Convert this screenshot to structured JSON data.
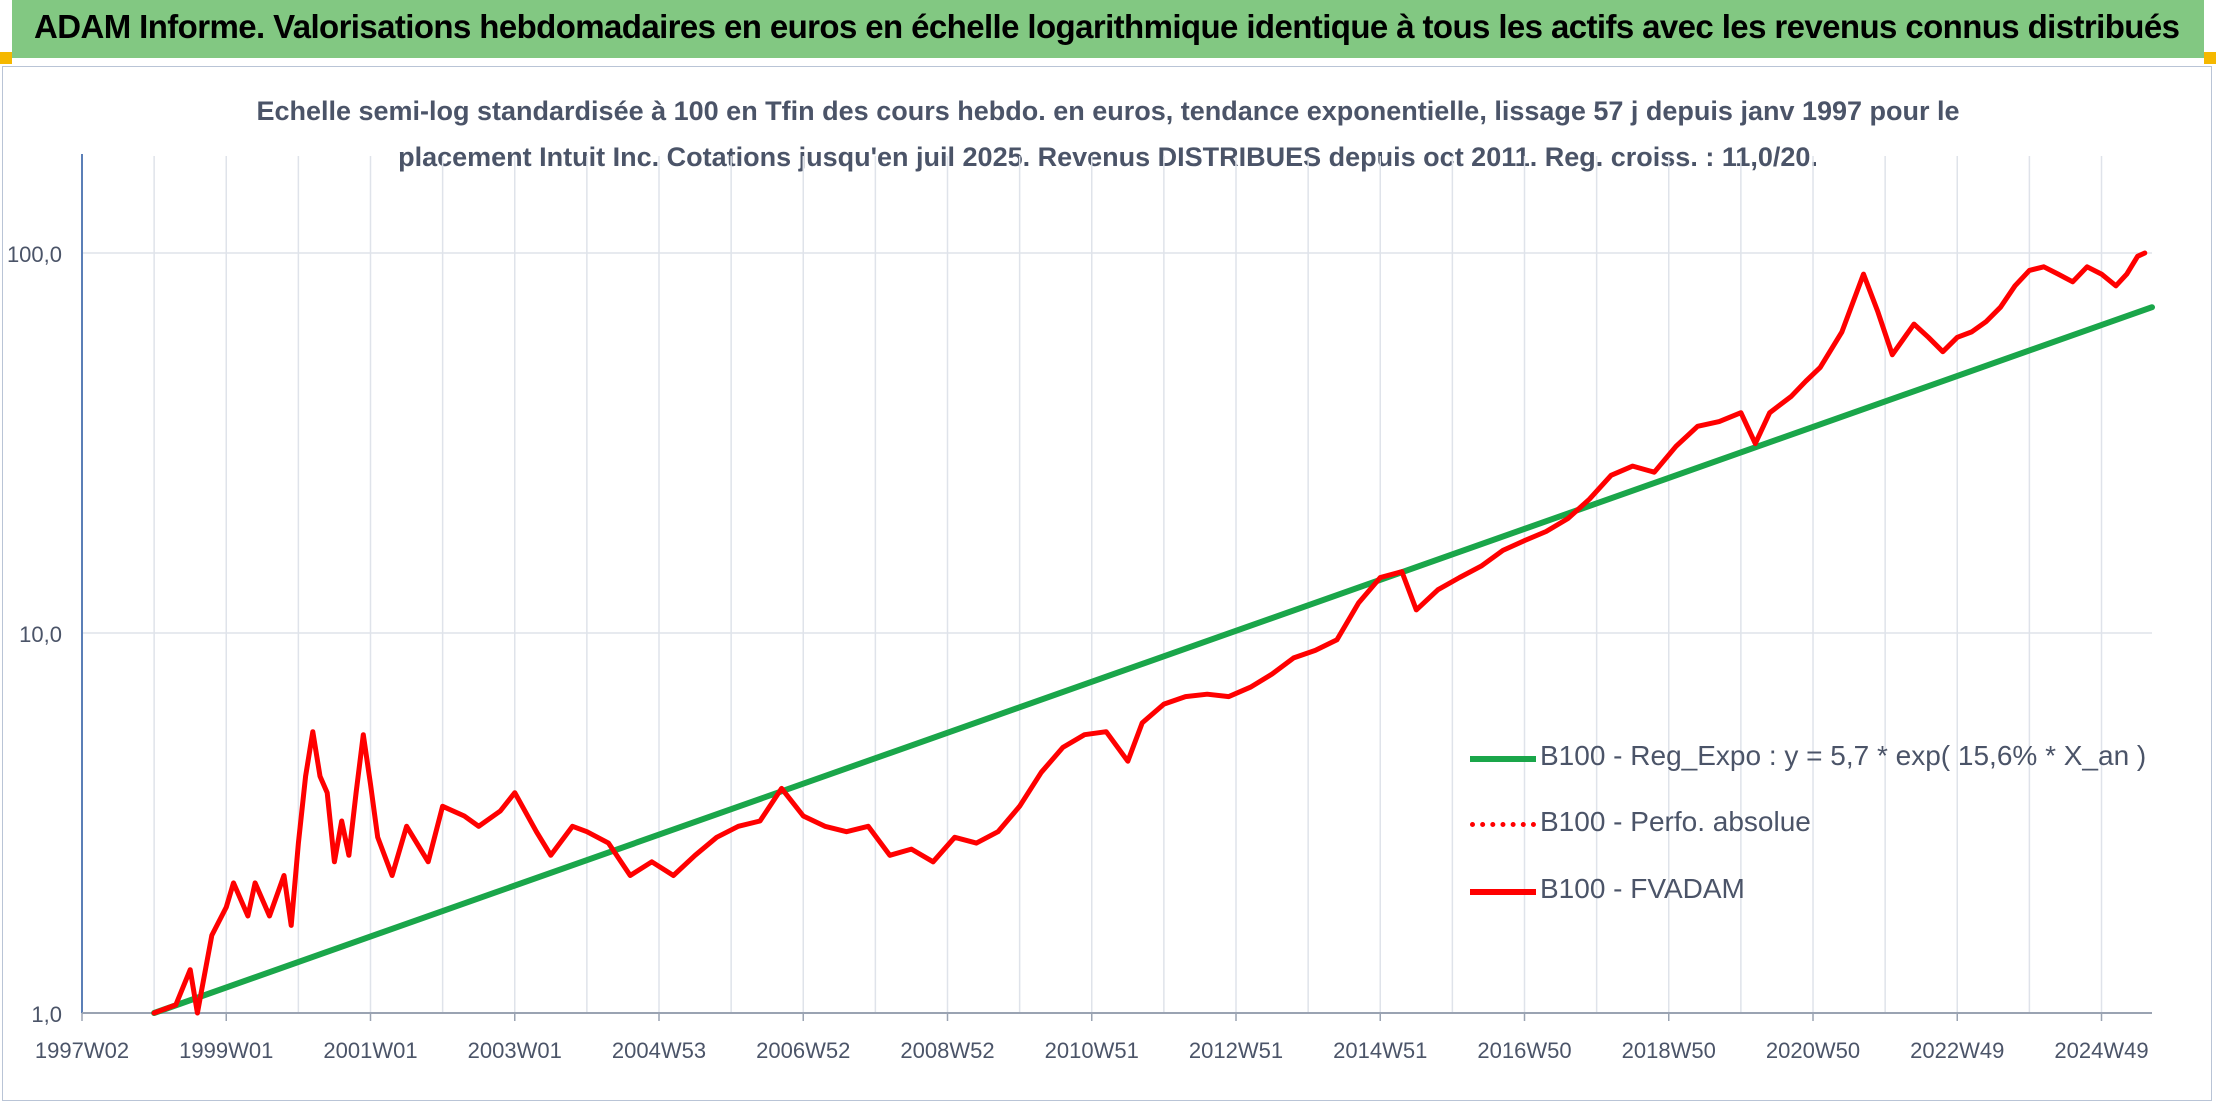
{
  "header": {
    "title": "ADAM Informe. Valorisations hebdomadaires en euros en échelle logarithmique identique à tous les actifs avec les revenus connus distribués"
  },
  "subtitle": {
    "line1": "Echelle semi-log standardisée à 100 en Tfin des cours hebdo. en euros, tendance exponentielle, lissage 57 j depuis janv 1997 pour le",
    "line2": "placement Intuit Inc. Cotations jusqu'en juil 2025. Revenus DISTRIBUES depuis oct 2011. Reg. croiss. : 11,0/20."
  },
  "colors": {
    "header_bg": "#82c882",
    "accent_corner": "#f5b800",
    "green_series": "#1aa64a",
    "red_series": "#ff0000",
    "grid": "#dfe3ea",
    "text": "#4b5468"
  },
  "chart_data": {
    "type": "line",
    "yscale": "log",
    "ylim": [
      1,
      180
    ],
    "xlim": [
      1997.0,
      2025.7
    ],
    "grid": true,
    "legend_position": "right-middle",
    "y_ticks": [
      {
        "value": 1,
        "label": "1,0"
      },
      {
        "value": 10,
        "label": "10,0"
      },
      {
        "value": 100,
        "label": "100,0"
      }
    ],
    "x_ticks": [
      {
        "value": 1997.0,
        "label": "1997W02"
      },
      {
        "value": 1999.0,
        "label": "1999W01"
      },
      {
        "value": 2001.0,
        "label": "2001W01"
      },
      {
        "value": 2003.0,
        "label": "2003W01"
      },
      {
        "value": 2005.0,
        "label": "2004W53"
      },
      {
        "value": 2007.0,
        "label": "2006W52"
      },
      {
        "value": 2009.0,
        "label": "2008W52"
      },
      {
        "value": 2011.0,
        "label": "2010W51"
      },
      {
        "value": 2013.0,
        "label": "2012W51"
      },
      {
        "value": 2015.0,
        "label": "2014W51"
      },
      {
        "value": 2017.0,
        "label": "2016W50"
      },
      {
        "value": 2019.0,
        "label": "2018W50"
      },
      {
        "value": 2021.0,
        "label": "2020W50"
      },
      {
        "value": 2023.0,
        "label": "2022W49"
      },
      {
        "value": 2025.0,
        "label": "2024W49"
      }
    ],
    "series": [
      {
        "name": "B100 - Reg_Expo : y = 5,7 * exp( 15,6% *  X_an )",
        "color": "#1aa64a",
        "style": "solid",
        "x": [
          1998.0,
          2025.7
        ],
        "y": [
          1.0,
          72
        ]
      },
      {
        "name": "B100 - Perfo. absolue",
        "color": "#ff0000",
        "style": "dotted",
        "x": [],
        "y": []
      },
      {
        "name": "B100 - FVADAM",
        "color": "#ff0000",
        "style": "solid",
        "x": [
          1998.0,
          1998.3,
          1998.5,
          1998.6,
          1998.8,
          1999.0,
          1999.1,
          1999.3,
          1999.4,
          1999.6,
          1999.8,
          1999.9,
          2000.0,
          2000.1,
          2000.2,
          2000.3,
          2000.4,
          2000.5,
          2000.6,
          2000.7,
          2000.8,
          2000.9,
          2001.0,
          2001.1,
          2001.3,
          2001.5,
          2001.8,
          2002.0,
          2002.3,
          2002.5,
          2002.8,
          2003.0,
          2003.3,
          2003.5,
          2003.8,
          2004.0,
          2004.3,
          2004.6,
          2004.9,
          2005.2,
          2005.5,
          2005.8,
          2006.1,
          2006.4,
          2006.7,
          2007.0,
          2007.3,
          2007.6,
          2007.9,
          2008.2,
          2008.5,
          2008.8,
          2009.1,
          2009.4,
          2009.7,
          2010.0,
          2010.3,
          2010.6,
          2010.9,
          2011.2,
          2011.5,
          2011.7,
          2012.0,
          2012.3,
          2012.6,
          2012.9,
          2013.2,
          2013.5,
          2013.8,
          2014.1,
          2014.4,
          2014.7,
          2015.0,
          2015.3,
          2015.5,
          2015.8,
          2016.1,
          2016.4,
          2016.7,
          2017.0,
          2017.3,
          2017.6,
          2017.9,
          2018.2,
          2018.5,
          2018.8,
          2019.1,
          2019.4,
          2019.7,
          2020.0,
          2020.2,
          2020.4,
          2020.7,
          2020.9,
          2021.1,
          2021.4,
          2021.7,
          2021.9,
          2022.1,
          2022.4,
          2022.6,
          2022.8,
          2023.0,
          2023.2,
          2023.4,
          2023.6,
          2023.8,
          2024.0,
          2024.2,
          2024.4,
          2024.6,
          2024.8,
          2025.0,
          2025.2,
          2025.35,
          2025.5,
          2025.6
        ],
        "y": [
          1.0,
          1.05,
          1.3,
          1.0,
          1.6,
          1.9,
          2.2,
          1.8,
          2.2,
          1.8,
          2.3,
          1.7,
          2.8,
          4.2,
          5.5,
          4.2,
          3.8,
          2.5,
          3.2,
          2.6,
          3.8,
          5.4,
          4.0,
          2.9,
          2.3,
          3.1,
          2.5,
          3.5,
          3.3,
          3.1,
          3.4,
          3.8,
          3.0,
          2.6,
          3.1,
          3.0,
          2.8,
          2.3,
          2.5,
          2.3,
          2.6,
          2.9,
          3.1,
          3.2,
          3.9,
          3.3,
          3.1,
          3.0,
          3.1,
          2.6,
          2.7,
          2.5,
          2.9,
          2.8,
          3.0,
          3.5,
          4.3,
          5.0,
          5.4,
          5.5,
          4.6,
          5.8,
          6.5,
          6.8,
          6.9,
          6.8,
          7.2,
          7.8,
          8.6,
          9.0,
          9.6,
          12.0,
          14.0,
          14.5,
          11.5,
          13.0,
          14.0,
          15.0,
          16.5,
          17.5,
          18.5,
          20.0,
          22.5,
          26.0,
          27.5,
          26.5,
          31.0,
          35.0,
          36.0,
          38.0,
          31.5,
          38.0,
          42.0,
          46.0,
          50.0,
          62.0,
          88.0,
          70.0,
          54.0,
          65.0,
          60.0,
          55.0,
          60.0,
          62.0,
          66.0,
          72.0,
          82.0,
          90.0,
          92.0,
          88.0,
          84.0,
          92.0,
          88.0,
          82.0,
          88.0,
          98.0,
          100.0
        ]
      }
    ]
  }
}
